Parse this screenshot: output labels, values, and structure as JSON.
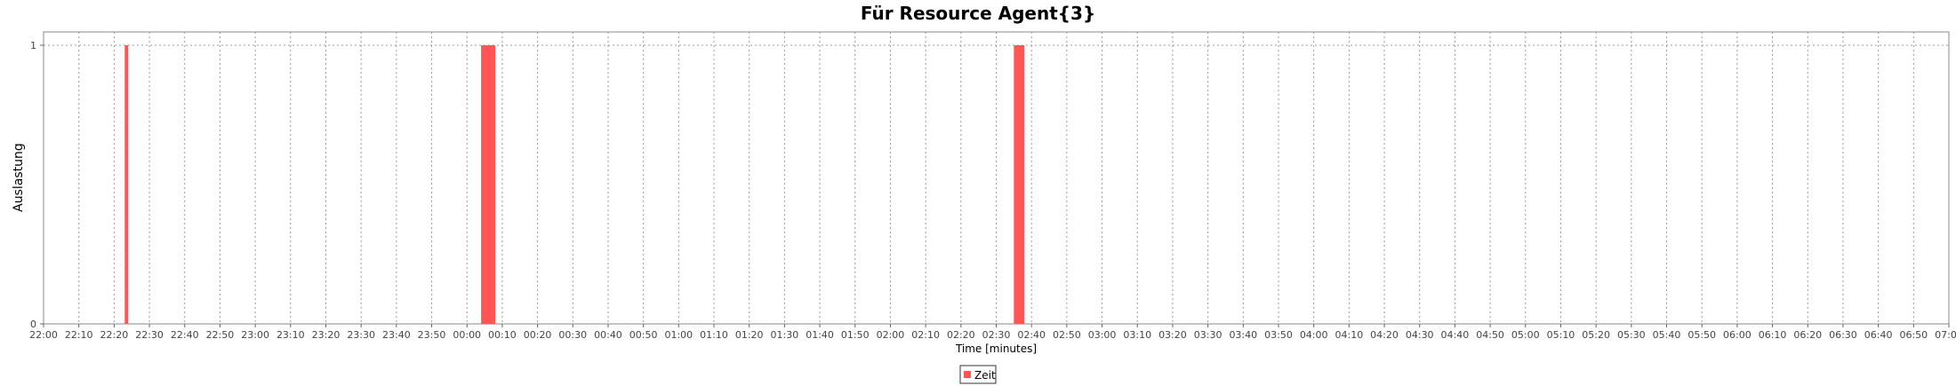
{
  "chart_data": {
    "type": "bar",
    "title": "Für Resource Agent{3}",
    "xlabel": "Time [minutes]",
    "ylabel": "Auslastung",
    "x_ticks": [
      "22:00",
      "22:10",
      "22:20",
      "22:30",
      "22:40",
      "22:50",
      "23:00",
      "23:10",
      "23:20",
      "23:30",
      "23:40",
      "23:50",
      "00:00",
      "00:10",
      "00:20",
      "00:30",
      "00:40",
      "00:50",
      "01:00",
      "01:10",
      "01:20",
      "01:30",
      "01:40",
      "01:50",
      "02:00",
      "02:10",
      "02:20",
      "02:30",
      "02:40",
      "02:50",
      "03:00",
      "03:10",
      "03:20",
      "03:30",
      "03:40",
      "03:50",
      "04:00",
      "04:10",
      "04:20",
      "04:30",
      "04:40",
      "04:50",
      "05:00",
      "05:10",
      "05:20",
      "05:30",
      "05:40",
      "05:50",
      "06:00",
      "06:10",
      "06:20",
      "06:30",
      "06:40",
      "06:50",
      "07:00"
    ],
    "y_ticks": [
      "0",
      "1"
    ],
    "ylim": [
      0,
      1
    ],
    "xlim": [
      "22:00",
      "07:00"
    ],
    "grid": true,
    "series": [
      {
        "name": "Zeit",
        "color": "#ff5555",
        "bars": [
          {
            "start": "22:23",
            "end": "22:24",
            "value": 1
          },
          {
            "start": "00:04",
            "end": "00:08",
            "value": 1
          },
          {
            "start": "02:35",
            "end": "02:38",
            "value": 1
          }
        ]
      }
    ],
    "legend_position": "bottom-center"
  }
}
